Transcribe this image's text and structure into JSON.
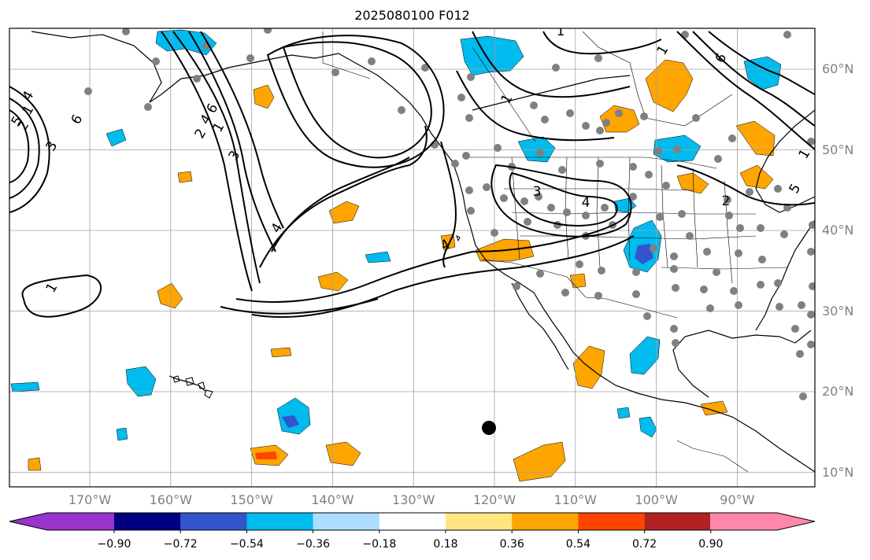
{
  "title": "2025080100 F012",
  "lat_labels": [
    {
      "deg": 60,
      "text": "60°N"
    },
    {
      "deg": 50,
      "text": "50°N"
    },
    {
      "deg": 40,
      "text": "40°N"
    },
    {
      "deg": 30,
      "text": "30°N"
    },
    {
      "deg": 20,
      "text": "20°N"
    },
    {
      "deg": 10,
      "text": "10°N"
    }
  ],
  "lon_labels": [
    {
      "deg": -170,
      "text": "170°W"
    },
    {
      "deg": -160,
      "text": "160°W"
    },
    {
      "deg": -150,
      "text": "150°W"
    },
    {
      "deg": -140,
      "text": "140°W"
    },
    {
      "deg": -130,
      "text": "130°W"
    },
    {
      "deg": -120,
      "text": "120°W"
    },
    {
      "deg": -110,
      "text": "110°W"
    },
    {
      "deg": -100,
      "text": "100°W"
    },
    {
      "deg": -90,
      "text": "90°W"
    }
  ],
  "colorbar": {
    "bounds": [
      -0.9,
      -0.72,
      -0.54,
      -0.36,
      -0.18,
      0.18,
      0.36,
      0.54,
      0.72,
      0.9
    ],
    "labels": [
      "−0.90",
      "−0.72",
      "−0.54",
      "−0.36",
      "−0.18",
      "0.18",
      "0.36",
      "0.54",
      "0.72",
      "0.90"
    ],
    "colors": [
      "#9933cc",
      "#000080",
      "#3355cc",
      "#00bbee",
      "#aaddff",
      "#ffffff",
      "#ffe680",
      "#ffa500",
      "#ff4500",
      "#b22222",
      "#ff88aa"
    ]
  },
  "contour_labels": [
    "1",
    "2",
    "3",
    "4",
    "5",
    "6",
    "1",
    "2",
    "3",
    "4",
    "6",
    "1",
    "3",
    "4",
    "4",
    "1",
    "4",
    "6",
    "2",
    "1",
    "5",
    "1",
    "1"
  ]
}
